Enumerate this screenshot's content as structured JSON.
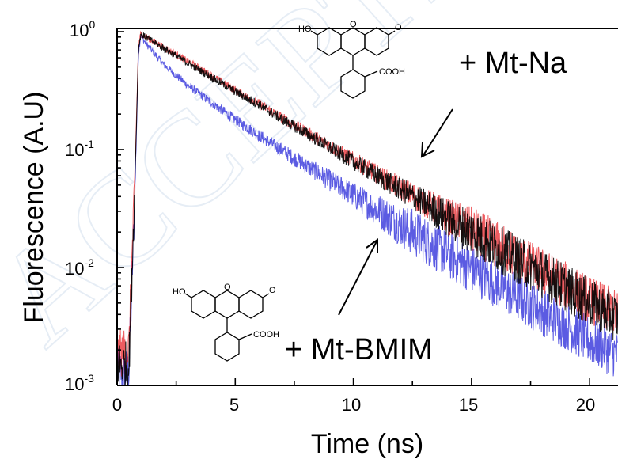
{
  "chart_data": {
    "type": "line",
    "xlabel": "Time (ns)",
    "ylabel": "Fluorescence (A.U)",
    "xlim": [
      0,
      21.2
    ],
    "ylim": [
      0.001,
      1
    ],
    "yscale": "log",
    "x_ticks": [
      "0",
      "5",
      "10",
      "15",
      "20"
    ],
    "x_tick_values": [
      0,
      5,
      10,
      15,
      20
    ],
    "y_tick_base": "10",
    "y_tick_exponents": [
      "0",
      "-1",
      "-2",
      "-3"
    ],
    "grid": false,
    "series": [
      {
        "color": "#000000",
        "x": [
          0,
          0.5,
          0.75,
          0.9,
          1.0,
          1.2,
          2,
          3,
          4,
          5,
          6,
          7,
          8,
          9,
          10,
          11,
          12,
          13,
          14,
          15,
          16,
          17,
          18,
          19,
          20,
          21.2
        ],
        "values": [
          0.0015,
          0.0015,
          0.05,
          0.7,
          0.95,
          0.9,
          0.72,
          0.54,
          0.41,
          0.31,
          0.24,
          0.18,
          0.138,
          0.104,
          0.079,
          0.06,
          0.046,
          0.035,
          0.026,
          0.02,
          0.015,
          0.0115,
          0.0088,
          0.0067,
          0.005,
          0.0037
        ]
      },
      {
        "color": "#e8262b",
        "x": [
          0,
          0.5,
          0.75,
          0.9,
          1.0,
          1.2,
          2,
          3,
          4,
          5,
          6,
          7,
          8,
          9,
          10,
          11,
          12,
          13,
          14,
          15,
          16,
          17,
          18,
          19,
          20,
          21.2
        ],
        "values": [
          0.0018,
          0.002,
          0.06,
          0.72,
          0.96,
          0.91,
          0.73,
          0.56,
          0.42,
          0.32,
          0.245,
          0.185,
          0.142,
          0.108,
          0.082,
          0.062,
          0.047,
          0.036,
          0.027,
          0.021,
          0.016,
          0.012,
          0.0092,
          0.007,
          0.0053,
          0.004
        ]
      },
      {
        "color": "#2424d8",
        "x": [
          0,
          0.5,
          0.75,
          0.9,
          1.0,
          1.2,
          2,
          3,
          4,
          5,
          6,
          7,
          8,
          9,
          10,
          11,
          12,
          13,
          14,
          15,
          16,
          17,
          18,
          19,
          20,
          21.2
        ],
        "values": [
          0.0013,
          0.0013,
          0.04,
          0.65,
          0.93,
          0.8,
          0.52,
          0.35,
          0.25,
          0.18,
          0.132,
          0.098,
          0.073,
          0.055,
          0.041,
          0.031,
          0.023,
          0.0172,
          0.0129,
          0.0097,
          0.0073,
          0.0055,
          0.0042,
          0.0032,
          0.0024,
          0.0018
        ]
      }
    ],
    "annotations": [
      "+ Mt-Na",
      "+ Mt-BMIM"
    ]
  },
  "structure_top": {
    "ho": "HO",
    "o": "O",
    "cooh": "COOH"
  },
  "structure_bottom": {
    "ho": "HO",
    "o": "O",
    "cooh": "COOH"
  },
  "watermark_text": "ACCEPTED"
}
